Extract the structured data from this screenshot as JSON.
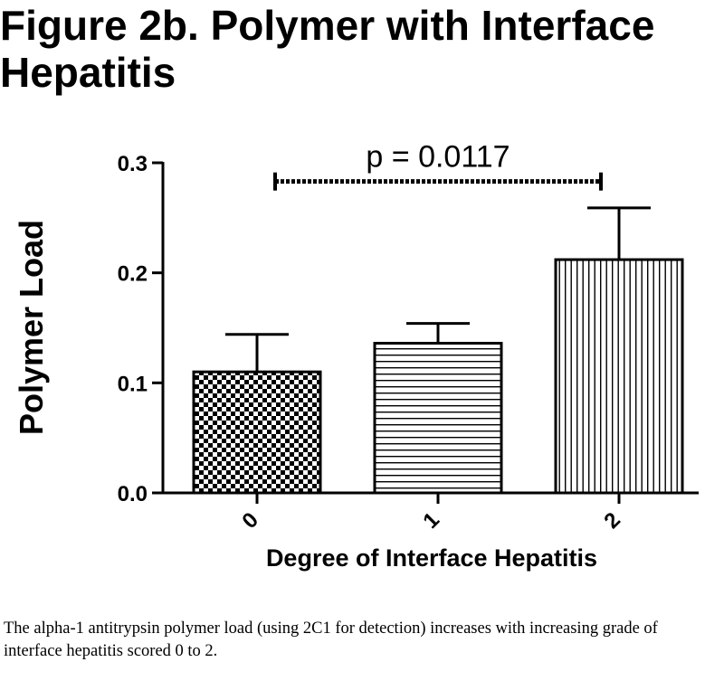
{
  "page": {
    "title": "Figure 2b. Polymer with Interface Hepatitis",
    "caption": "The alpha-1 antitrypsin polymer load (using 2C1 for detection) increases with increasing grade of interface hepatitis scored 0 to 2."
  },
  "chart_data": {
    "type": "bar",
    "categories": [
      "0",
      "1",
      "2"
    ],
    "values": [
      0.11,
      0.136,
      0.212
    ],
    "errors": [
      0.034,
      0.018,
      0.047
    ],
    "patterns": [
      "checkerboard",
      "horizontal-lines",
      "vertical-lines"
    ],
    "xlabel": "Degree of Interface Hepatitis",
    "ylabel": "Polymer Load",
    "ylim": [
      0,
      0.3
    ],
    "yticks": [
      0,
      0.1,
      0.2,
      0.3
    ],
    "ytick_labels": [
      "0.0",
      "0.1",
      "0.2",
      "0.3"
    ],
    "grid": false,
    "annotation": {
      "label": "p = 0.0117",
      "from": "0",
      "to": "2",
      "y": 0.283
    }
  }
}
